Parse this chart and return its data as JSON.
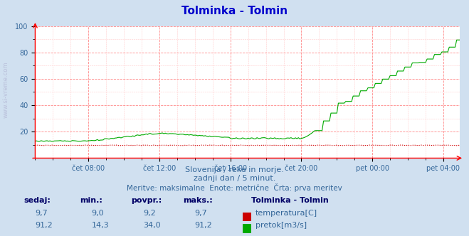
{
  "title": "Tolminka - Tolmin",
  "title_color": "#0000cc",
  "bg_color": "#d0e0f0",
  "plot_bg_color": "#ffffff",
  "grid_color_major": "#ff8888",
  "grid_color_minor": "#ffcccc",
  "tick_label_color": "#336699",
  "subtitle1": "Slovenija / reke in morje.",
  "subtitle2": "zadnji dan / 5 minut.",
  "subtitle3": "Meritve: maksimalne  Enote: metrične  Črta: prva meritev",
  "subtitle_color": "#336699",
  "xlim_min": 0,
  "xlim_max": 287,
  "ylim_min": 0,
  "ylim_max": 100,
  "yticks": [
    20,
    40,
    60,
    80,
    100
  ],
  "xtick_labels": [
    "čet 08:00",
    "čet 12:00",
    "čet 16:00",
    "čet 20:00",
    "pet 00:00",
    "pet 04:00"
  ],
  "xtick_positions": [
    36,
    84,
    132,
    180,
    228,
    276
  ],
  "temp_color": "#cc0000",
  "flow_color": "#00aa00",
  "legend_title": "Tolminka - Tolmin",
  "legend_color": "#000066",
  "table_headers": [
    "sedaj:",
    "min.:",
    "povpr.:",
    "maks.:"
  ],
  "table_temp": [
    "9,7",
    "9,0",
    "9,2",
    "9,7"
  ],
  "table_flow": [
    "91,2",
    "14,3",
    "34,0",
    "91,2"
  ],
  "table_color": "#336699",
  "watermark": "www.si-vreme.com",
  "watermark_color": "#aaaacc"
}
